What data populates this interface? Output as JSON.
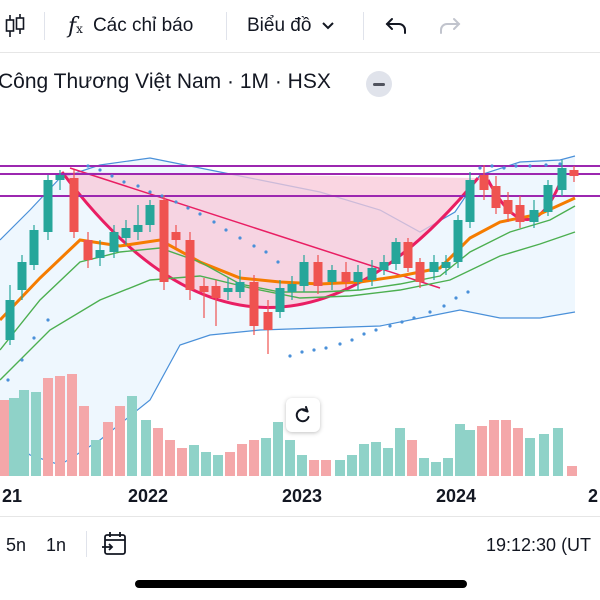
{
  "toolbar": {
    "indicators_label": "Các chỉ báo",
    "chart_type_label": "Biểu đồ",
    "icons": [
      "candles-icon",
      "function-icon",
      "chevron-down-icon",
      "undo-icon",
      "redo-icon"
    ]
  },
  "header": {
    "title": "Công Thương Việt Nam · 1M · HSX"
  },
  "chart": {
    "x_labels": [
      "21",
      "2022",
      "2023",
      "2024",
      "2"
    ],
    "colors": {
      "up": "#26a69a",
      "down": "#ef5350",
      "vol_up": "#8fd2c8",
      "vol_down": "#f4a7a9",
      "band": "#4a90d9",
      "ma_orange": "#f57c00",
      "ma_green": "#4caf50",
      "cup": "#e91e63",
      "resistance": "#9c27b0"
    }
  },
  "footer": {
    "range_5n": "5n",
    "range_1n": "1n",
    "time": "19:12:30 (UT"
  }
}
